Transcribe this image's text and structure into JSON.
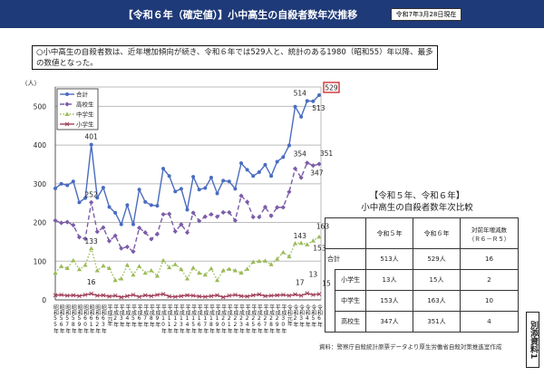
{
  "header": {
    "title": "【令和６年（確定値）】小中高生の自殺者数年次推移",
    "date_badge": "令和7年3月28日現在"
  },
  "notice": "○小中高生の自殺者数は、近年増加傾向が続き、令和６年では529人と、統計のある1980（昭和55）年以降、最多の数値となった。",
  "chart_data": {
    "type": "line",
    "ylabel": "（人）",
    "ylim": [
      0,
      550
    ],
    "yticks": [
      0,
      100,
      200,
      300,
      400,
      500
    ],
    "grid": true,
    "legend_position": "top-left",
    "categories": [
      "昭和55年",
      "昭和56年",
      "昭和57年",
      "昭和58年",
      "昭和59年",
      "昭和60年",
      "昭和61年",
      "昭和62年",
      "昭和63年",
      "平成元年",
      "平成2年",
      "平成3年",
      "平成4年",
      "平成5年",
      "平成6年",
      "平成7年",
      "平成8年",
      "平成9年",
      "平成10年",
      "平成11年",
      "平成12年",
      "平成13年",
      "平成14年",
      "平成15年",
      "平成16年",
      "平成17年",
      "平成18年",
      "平成19年",
      "平成20年",
      "平成21年",
      "平成22年",
      "平成23年",
      "平成24年",
      "平成25年",
      "平成26年",
      "平成27年",
      "平成28年",
      "平成29年",
      "平成30年",
      "令和元年",
      "令和2年",
      "令和3年",
      "令和4年",
      "令和5年",
      "令和6年"
    ],
    "series": [
      {
        "name": "合計",
        "color": "#4a6cc0",
        "dash": "",
        "marker": "circle",
        "values": [
          288,
          300,
          296,
          306,
          252,
          263,
          401,
          264,
          290,
          240,
          225,
          195,
          245,
          195,
          285,
          253,
          245,
          243,
          339,
          320,
          280,
          287,
          233,
          318,
          285,
          289,
          316,
          275,
          308,
          306,
          287,
          353,
          336,
          320,
          330,
          349,
          320,
          357,
          369,
          399,
          499,
          473,
          514,
          513,
          529
        ]
      },
      {
        "name": "高校生",
        "color": "#7b5ca8",
        "dash": "5,3",
        "marker": "diamond",
        "values": [
          205,
          199,
          201,
          193,
          162,
          158,
          252,
          176,
          187,
          152,
          166,
          133,
          137,
          125,
          186,
          174,
          157,
          170,
          221,
          222,
          177,
          195,
          174,
          225,
          204,
          215,
          221,
          215,
          226,
          226,
          205,
          269,
          253,
          214,
          214,
          240,
          217,
          239,
          239,
          279,
          339,
          316,
          354,
          347,
          351
        ]
      },
      {
        "name": "中学生",
        "color": "#9bbb59",
        "dash": "1.5,2",
        "marker": "triangle",
        "values": [
          70,
          87,
          82,
          102,
          79,
          90,
          133,
          76,
          88,
          82,
          51,
          55,
          90,
          65,
          87,
          70,
          76,
          62,
          102,
          84,
          92,
          79,
          55,
          83,
          70,
          65,
          81,
          51,
          76,
          80,
          76,
          70,
          80,
          98,
          100,
          101,
          92,
          106,
          123,
          112,
          146,
          147,
          143,
          153,
          163
        ]
      },
      {
        "name": "小学生",
        "color": "#a0405a",
        "dash": "",
        "marker": "x",
        "values": [
          12,
          13,
          11,
          12,
          10,
          13,
          16,
          11,
          12,
          9,
          11,
          7,
          10,
          13,
          8,
          12,
          10,
          13,
          15,
          9,
          8,
          10,
          12,
          11,
          9,
          8,
          10,
          12,
          7,
          11,
          13,
          10,
          9,
          12,
          14,
          10,
          11,
          12,
          13,
          11,
          14,
          11,
          17,
          13,
          15
        ]
      }
    ],
    "annotations": [
      {
        "text": "401",
        "series": 0,
        "index": 6
      },
      {
        "text": "252",
        "series": 1,
        "index": 6
      },
      {
        "text": "133",
        "series": 2,
        "index": 6
      },
      {
        "text": "16",
        "series": 3,
        "index": 6
      },
      {
        "text": "514",
        "series": 0,
        "index": 42
      },
      {
        "text": "513",
        "series": 0,
        "index": 43
      },
      {
        "text": "529",
        "series": 0,
        "index": 44,
        "boxed": true
      },
      {
        "text": "354",
        "series": 1,
        "index": 42
      },
      {
        "text": "351",
        "series": 1,
        "index": 44
      },
      {
        "text": "347",
        "series": 1,
        "index": 43
      },
      {
        "text": "143",
        "series": 2,
        "index": 42
      },
      {
        "text": "163",
        "series": 2,
        "index": 44
      },
      {
        "text": "153",
        "series": 2,
        "index": 43
      },
      {
        "text": "17",
        "series": 3,
        "index": 42
      },
      {
        "text": "13",
        "series": 3,
        "index": 43
      },
      {
        "text": "15",
        "series": 3,
        "index": 44
      }
    ]
  },
  "comparison": {
    "title_line1": "【令和５年、令和６年】",
    "title_line2": "小中高生の自殺者数年次比較",
    "headers": [
      "",
      "令和５年",
      "令和６年",
      "対前年増減数（Ｒ６－Ｒ５）"
    ],
    "rows": [
      {
        "label": "合計",
        "r5": "513人",
        "r6": "529人",
        "diff": "16"
      },
      {
        "label": "小学生",
        "r5": "13人",
        "r6": "15人",
        "diff": "2"
      },
      {
        "label": "中学生",
        "r5": "153人",
        "r6": "163人",
        "diff": "10"
      },
      {
        "label": "高校生",
        "r5": "347人",
        "r6": "351人",
        "diff": "4"
      }
    ]
  },
  "source": "資料：警察庁自殺統計原票データより厚生労働省自殺対策推進室作成",
  "annex_label": "別添資料1"
}
